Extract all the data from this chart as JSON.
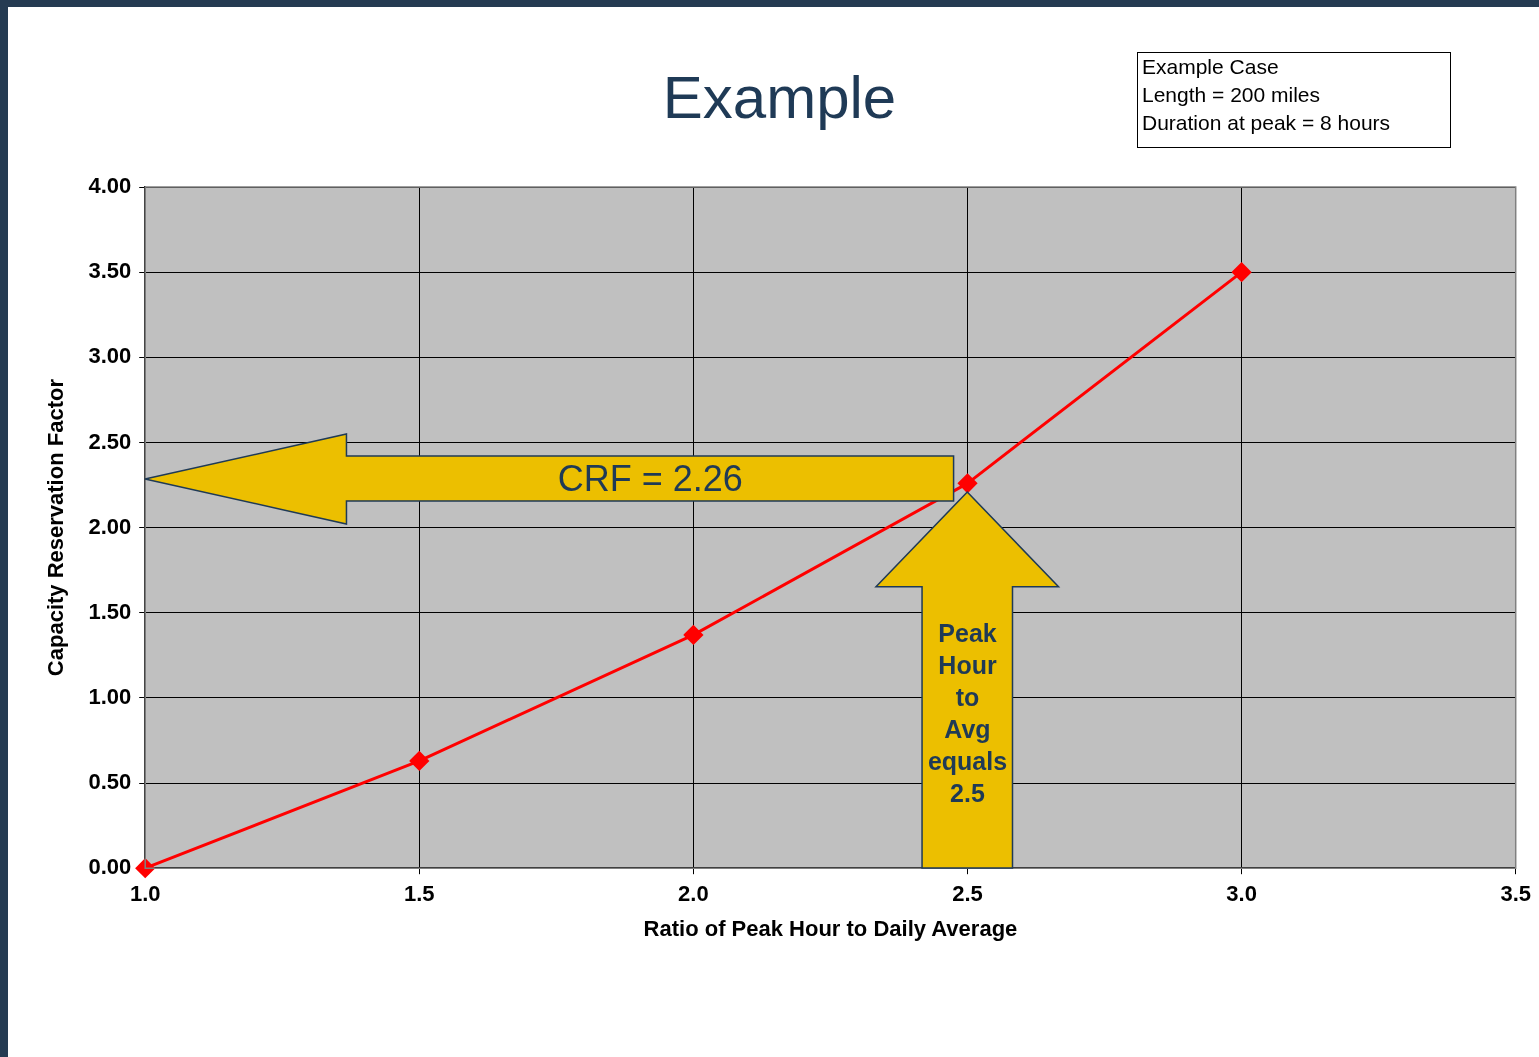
{
  "chart_data": {
    "type": "line",
    "title": "Example",
    "xlabel": "Ratio of Peak Hour to Daily Average",
    "ylabel": "Capacity Reservation Factor",
    "x": [
      1.0,
      1.5,
      2.0,
      2.5,
      3.0
    ],
    "series": [
      {
        "color": "#ff0000",
        "values": [
          0,
          0.63,
          1.37,
          2.26,
          3.5
        ]
      }
    ],
    "xlim": [
      1.0,
      3.5
    ],
    "xticks": [
      {
        "value": 1,
        "label": "1.0"
      },
      {
        "value": 1.5,
        "label": "1.5"
      },
      {
        "value": 2,
        "label": "2.0"
      },
      {
        "value": 2.5,
        "label": "2.5"
      },
      {
        "value": 3,
        "label": "3.0"
      },
      {
        "value": 3.5,
        "label": "3.5"
      }
    ],
    "ylim": [
      0,
      4
    ],
    "yticks": [
      {
        "value": 0,
        "label": "0.00"
      },
      {
        "value": 0.5,
        "label": "0.50"
      },
      {
        "value": 1,
        "label": "1.00"
      },
      {
        "value": 1.5,
        "label": "1.50"
      },
      {
        "value": 2,
        "label": "2.00"
      },
      {
        "value": 2.5,
        "label": "2.50"
      },
      {
        "value": 3,
        "label": "3.00"
      },
      {
        "value": 3.5,
        "label": "3.50"
      },
      {
        "value": 4,
        "label": "4.00"
      }
    ],
    "grid": true,
    "marker": "diamond",
    "annotations": [
      "Example Case\nLength = 200 miles\nDuration at peak = 8 hours",
      "CRF = 2.26",
      "Peak Hour to Avg equals 2.5"
    ]
  }
}
